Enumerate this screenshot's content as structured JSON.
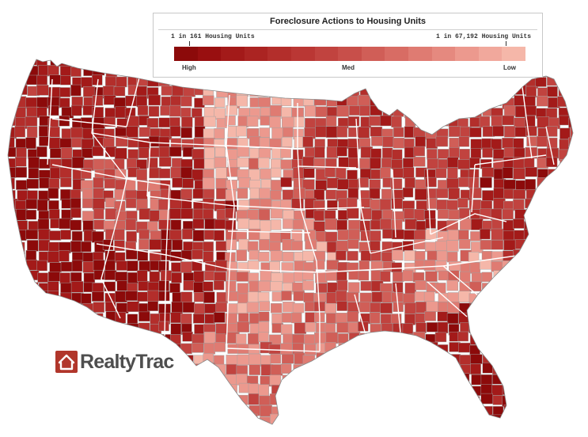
{
  "legend": {
    "title": "Foreclosure Actions to Housing Units",
    "left_label": "1 in 161 Housing Units",
    "right_label": "1 in 67,192 Housing Units",
    "high_label": "High",
    "med_label": "Med",
    "low_label": "Low",
    "ramp": [
      "#8c0a0a",
      "#990f10",
      "#a31a19",
      "#ab2422",
      "#b32e2b",
      "#ba3734",
      "#c1433f",
      "#c84f4a",
      "#d05e57",
      "#d86c64",
      "#df7b72",
      "#e5897f",
      "#ec998e",
      "#f1a89c",
      "#f5b7a9"
    ]
  },
  "logo": {
    "name_part1": "Realty",
    "name_part2": "Trac",
    "brand_color": "#b1362b"
  },
  "map": {
    "border_color": "#ffffff",
    "county_line_color": "#a0a0a0",
    "palette": [
      "#8c0a0a",
      "#a31a19",
      "#b32e2b",
      "#c1433f",
      "#d05e57",
      "#df7b72",
      "#ec998e",
      "#f5b7a9"
    ]
  }
}
